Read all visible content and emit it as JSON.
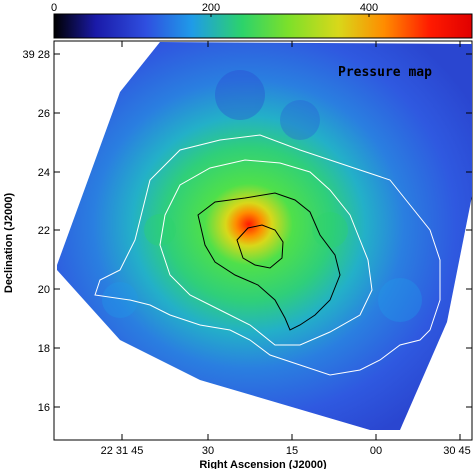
{
  "title": "Pressure map",
  "colorbar": {
    "ticks": [
      "0",
      "200",
      "400"
    ],
    "tick_values": [
      0,
      200,
      400
    ],
    "range": [
      0,
      500
    ],
    "stops": [
      "#000000",
      "#1a1aa8",
      "#2f4fe0",
      "#1f9be8",
      "#2cd36b",
      "#7ce02a",
      "#d8d81a",
      "#ff8c00",
      "#ff1a00",
      "#e00000"
    ]
  },
  "axes": {
    "xlabel": "Right Ascension (J2000)",
    "ylabel": "Declination (J2000)",
    "x_ticks": [
      "22 31 45",
      "30",
      "15",
      "00",
      "30 45"
    ],
    "y_ticks": [
      "39 28",
      "26",
      "24",
      "22",
      "20",
      "18",
      "16"
    ]
  },
  "contours": {
    "outer_color": "#ffffff",
    "inner_color": "#000000"
  }
}
